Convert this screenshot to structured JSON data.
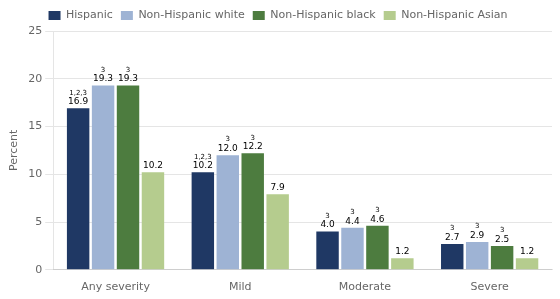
{
  "chart_data": {
    "type": "bar",
    "categories": [
      "Any severity",
      "Mild",
      "Moderate",
      "Severe"
    ],
    "series": [
      {
        "name": "Hispanic",
        "color": "#1f3864",
        "values": [
          16.9,
          10.2,
          4.0,
          2.7
        ],
        "value_labels": [
          "16.9",
          "10.2",
          "4.0",
          "2.7"
        ],
        "annotations": [
          "1,2,3",
          "1,2,3",
          "3",
          "3"
        ]
      },
      {
        "name": "Non-Hispanic white",
        "color": "#9eb3d4",
        "values": [
          19.3,
          12.0,
          4.4,
          2.9
        ],
        "value_labels": [
          "19.3",
          "12.0",
          "4.4",
          "2.9"
        ],
        "annotations": [
          "3",
          "3",
          "3",
          "3"
        ]
      },
      {
        "name": "Non-Hispanic black",
        "color": "#4d7c3f",
        "values": [
          19.3,
          12.2,
          4.6,
          2.5
        ],
        "value_labels": [
          "19.3",
          "12.2",
          "4.6",
          "2.5"
        ],
        "annotations": [
          "3",
          "3",
          "3",
          "3"
        ]
      },
      {
        "name": "Non-Hispanic Asian",
        "color": "#b5cc8e",
        "values": [
          10.2,
          7.9,
          1.2,
          1.2
        ],
        "value_labels": [
          "10.2",
          "7.9",
          "1.2",
          "1.2"
        ],
        "annotations": [
          null,
          null,
          null,
          null
        ]
      }
    ],
    "ylabel": "Percent",
    "ylim": [
      0,
      25
    ],
    "yticks": [
      0,
      5,
      10,
      15,
      20,
      25
    ],
    "grid": true,
    "legend": "top",
    "data_labels": true
  }
}
